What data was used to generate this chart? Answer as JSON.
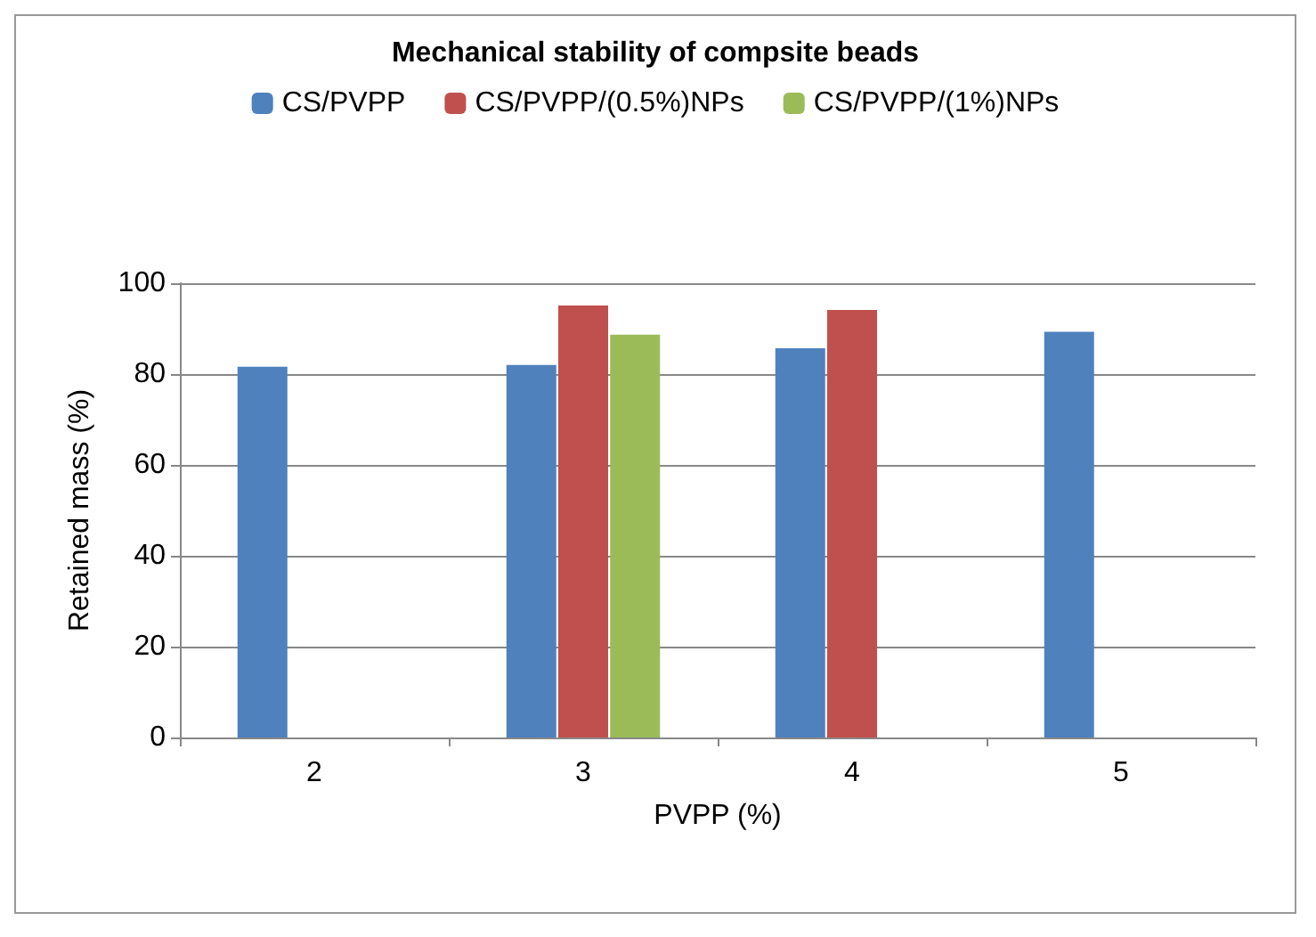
{
  "chart_data": {
    "type": "bar",
    "title": "Mechanical stability of compsite beads",
    "xlabel": "PVPP (%)",
    "ylabel": "Retained mass (%)",
    "categories": [
      "2",
      "3",
      "4",
      "5"
    ],
    "series": [
      {
        "name": "CS/PVPP",
        "color": "#4f81bd",
        "values": [
          81.6,
          82,
          85.7,
          89.3
        ]
      },
      {
        "name": "CS/PVPP/(0.5%)NPs",
        "color": "#c0504d",
        "values": [
          null,
          95.1,
          94.1,
          null
        ]
      },
      {
        "name": "CS/PVPP/(1%)NPs",
        "color": "#9bbb59",
        "values": [
          null,
          88.7,
          null,
          null
        ]
      }
    ],
    "ylim": [
      0,
      100
    ],
    "yticks": [
      0,
      20,
      40,
      60,
      80,
      100
    ],
    "grid": "y",
    "legend": "top"
  }
}
